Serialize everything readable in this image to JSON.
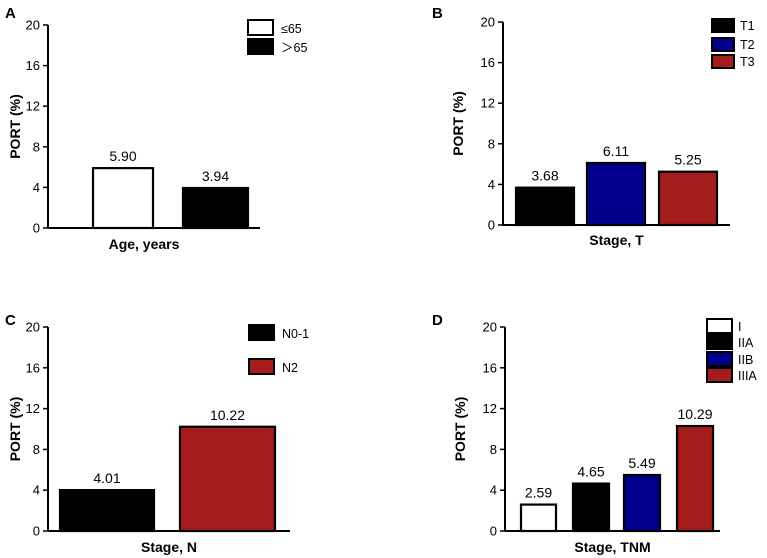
{
  "colors": {
    "white": "#ffffff",
    "black": "#000000",
    "navy": "#00008b",
    "red": "#a51c1c"
  },
  "chart_data": [
    {
      "panel": "A",
      "type": "bar",
      "ylabel": "PORT (%)",
      "xlabel": "Age, years",
      "ylim": [
        0,
        20
      ],
      "yticks": [
        0,
        4,
        8,
        12,
        16,
        20
      ],
      "categories": [
        "≤65",
        "＞65"
      ],
      "values": [
        5.9,
        3.94
      ],
      "labels": [
        "5.90",
        "3.94"
      ],
      "fills": [
        "#ffffff",
        "#000000"
      ],
      "legend": [
        "≤65",
        "＞65"
      ]
    },
    {
      "panel": "B",
      "type": "bar",
      "ylabel": "PORT (%)",
      "xlabel": "Stage, T",
      "ylim": [
        0,
        20
      ],
      "yticks": [
        0,
        4,
        8,
        12,
        16,
        20
      ],
      "categories": [
        "T1",
        "T2",
        "T3"
      ],
      "values": [
        3.68,
        6.11,
        5.25
      ],
      "labels": [
        "3.68",
        "6.11",
        "5.25"
      ],
      "fills": [
        "#000000",
        "#00008b",
        "#a51c1c"
      ],
      "legend": [
        "T1",
        "T2",
        "T3"
      ]
    },
    {
      "panel": "C",
      "type": "bar",
      "ylabel": "PORT (%)",
      "xlabel": "Stage, N",
      "ylim": [
        0,
        20
      ],
      "yticks": [
        0,
        4,
        8,
        12,
        16,
        20
      ],
      "categories": [
        "N0-1",
        "N2"
      ],
      "values": [
        4.01,
        10.22
      ],
      "labels": [
        "4.01",
        "10.22"
      ],
      "fills": [
        "#000000",
        "#a51c1c"
      ],
      "legend": [
        "N0-1",
        "N2"
      ]
    },
    {
      "panel": "D",
      "type": "bar",
      "ylabel": "PORT (%)",
      "xlabel": "Stage, TNM",
      "ylim": [
        0,
        20
      ],
      "yticks": [
        0,
        4,
        8,
        12,
        16,
        20
      ],
      "categories": [
        "I",
        "IIA",
        "IIB",
        "IIIA"
      ],
      "values": [
        2.59,
        4.65,
        5.49,
        10.29
      ],
      "labels": [
        "2.59",
        "4.65",
        "5.49",
        "10.29"
      ],
      "fills": [
        "#ffffff",
        "#000000",
        "#00008b",
        "#a51c1c"
      ],
      "legend": [
        "I",
        "IIA",
        "IIB",
        "IIIA"
      ]
    }
  ]
}
